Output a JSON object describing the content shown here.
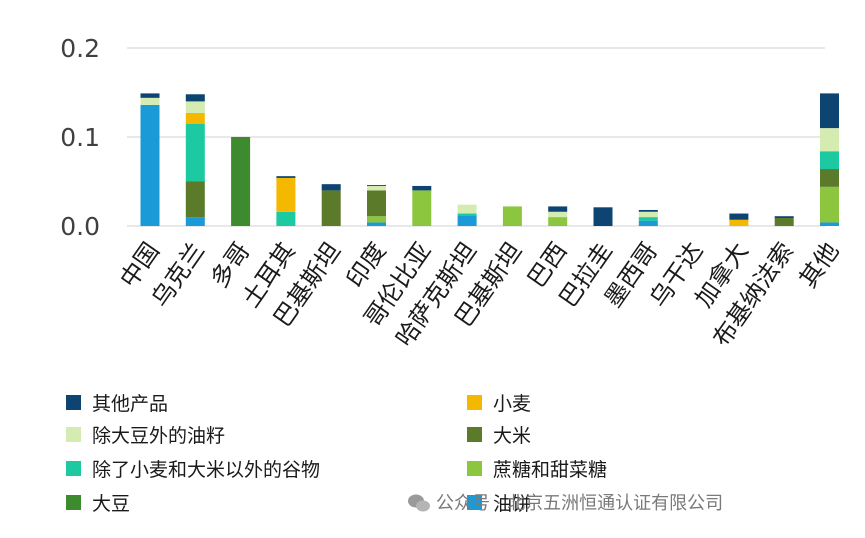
{
  "chart_data": {
    "type": "bar",
    "stacked": true,
    "title": "",
    "xlabel": "",
    "ylabel": "",
    "ylim": [
      0,
      0.2
    ],
    "yticks": [
      "0.0",
      "0.1",
      "0.2"
    ],
    "ytick_values": [
      0,
      0.1,
      0.2
    ],
    "grid": true,
    "categories": [
      "中国",
      "乌克兰",
      "多哥",
      "土耳其",
      "巴基斯坦",
      "印度",
      "哥伦比亚",
      "哈萨克斯坦",
      "巴基斯坦",
      "巴西",
      "巴拉圭",
      "墨西哥",
      "乌干达",
      "加拿大",
      "布基纳法索",
      "其他"
    ],
    "series": [
      {
        "name": "油饼",
        "color": "#1a9bd7",
        "values": [
          0.136,
          0.01,
          0,
          0,
          0,
          0.004,
          0,
          0.012,
          0,
          0,
          0,
          0.006,
          0,
          0,
          0,
          0.004
        ]
      },
      {
        "name": "大豆",
        "color": "#3e8a2e",
        "values": [
          0,
          0,
          0.1,
          0,
          0,
          0,
          0,
          0,
          0,
          0,
          0,
          0,
          0,
          0,
          0,
          0
        ]
      },
      {
        "name": "蔗糖和甜菜糖",
        "color": "#8cc63f",
        "values": [
          0,
          0,
          0,
          0,
          0,
          0.007,
          0.04,
          0,
          0.022,
          0.01,
          0,
          0,
          0,
          0,
          0,
          0.04
        ]
      },
      {
        "name": "大米",
        "color": "#5b7a2a",
        "values": [
          0,
          0.04,
          0,
          0,
          0.04,
          0.029,
          0,
          0,
          0,
          0,
          0,
          0,
          0,
          0,
          0.009,
          0.02
        ]
      },
      {
        "name": "除了小麦和大米以外的谷物",
        "color": "#1dc9a0",
        "values": [
          0,
          0.065,
          0,
          0.016,
          0,
          0,
          0,
          0.002,
          0,
          0,
          0,
          0.004,
          0,
          0,
          0,
          0.02
        ]
      },
      {
        "name": "小麦",
        "color": "#f5b800",
        "values": [
          0,
          0.012,
          0,
          0.038,
          0,
          0,
          0,
          0,
          0,
          0,
          0,
          0,
          0,
          0.007,
          0,
          0
        ]
      },
      {
        "name": "除大豆外的油籽",
        "color": "#d4ebb2",
        "values": [
          0.008,
          0.013,
          0,
          0,
          0,
          0.005,
          0,
          0.01,
          0,
          0.006,
          0,
          0.006,
          0,
          0,
          0,
          0.026
        ]
      },
      {
        "name": "其他产品",
        "color": "#0d4472",
        "values": [
          0.005,
          0.008,
          0,
          0.002,
          0.007,
          0.001,
          0.005,
          0,
          0,
          0.006,
          0.021,
          0.002,
          0,
          0.007,
          0.002,
          0.039
        ]
      }
    ],
    "legend": {
      "placement": "bottom",
      "order": [
        "其他产品",
        "小麦",
        "除大豆外的油籽",
        "大米",
        "除了小麦和大米以外的谷物",
        "蔗糖和甜菜糖",
        "大豆",
        "油饼"
      ]
    }
  },
  "watermark": {
    "text": "公众号 · 北京五洲恒通认证有限公司",
    "icon": "wechat-icon"
  }
}
